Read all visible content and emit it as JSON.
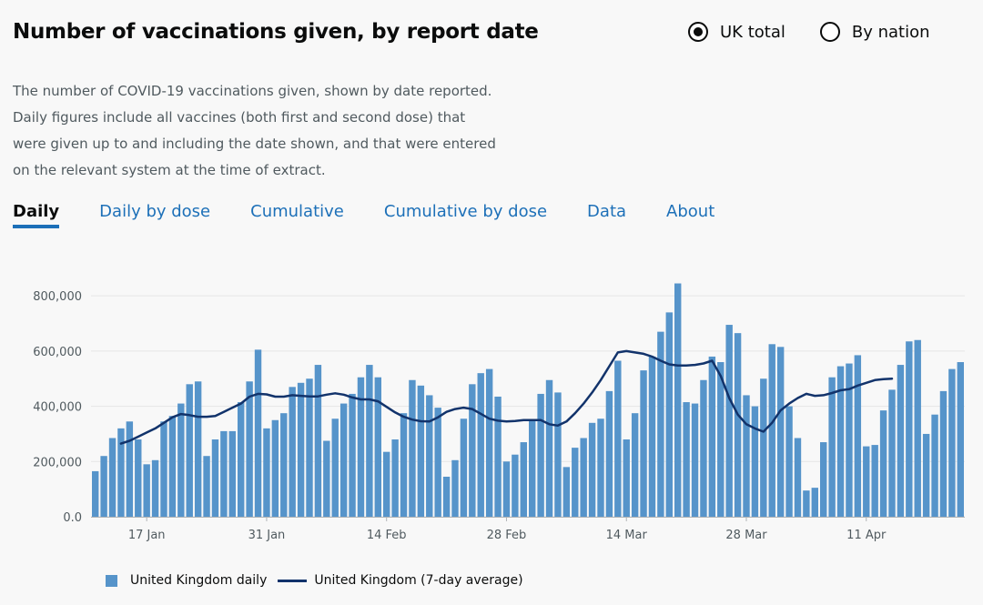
{
  "header": {
    "title": "Number of vaccinations given, by report date",
    "radios": [
      {
        "label": "UK total",
        "checked": true
      },
      {
        "label": "By nation",
        "checked": false
      }
    ]
  },
  "description": [
    "The number of COVID-19 vaccinations given, shown by date reported.",
    "Daily figures include all vaccines (both first and second dose) that",
    "were given up to and including the date shown, and that were entered",
    "on the relevant system at the time of extract."
  ],
  "tabs": [
    "Daily",
    "Daily by dose",
    "Cumulative",
    "Cumulative by dose",
    "Data",
    "About"
  ],
  "active_tab": 0,
  "colors": {
    "bar": "#5694ca",
    "line": "#12336b",
    "tab_link": "#1d70b8",
    "grid": "#e6e6e6"
  },
  "chart_data": {
    "type": "bar",
    "title": "",
    "xlabel": "",
    "ylabel": "",
    "ylim": [
      0,
      850000
    ],
    "yticks": [
      0,
      200000,
      400000,
      600000,
      800000
    ],
    "ytick_labels": [
      "0.0",
      "200,000",
      "400,000",
      "600,000",
      "800,000"
    ],
    "x_start": "11 Jan",
    "xticks": [
      {
        "index": 6,
        "label": "17 Jan"
      },
      {
        "index": 20,
        "label": "31 Jan"
      },
      {
        "index": 34,
        "label": "14 Feb"
      },
      {
        "index": 48,
        "label": "28 Feb"
      },
      {
        "index": 62,
        "label": "14 Mar"
      },
      {
        "index": 76,
        "label": "28 Mar"
      },
      {
        "index": 90,
        "label": "11 Apr"
      }
    ],
    "series": [
      {
        "name": "United Kingdom daily",
        "type": "bar",
        "values": [
          165000,
          220000,
          285000,
          320000,
          345000,
          280000,
          190000,
          205000,
          345000,
          365000,
          410000,
          480000,
          490000,
          220000,
          280000,
          310000,
          310000,
          415000,
          490000,
          605000,
          320000,
          350000,
          375000,
          470000,
          485000,
          500000,
          550000,
          275000,
          355000,
          410000,
          445000,
          505000,
          550000,
          505000,
          235000,
          280000,
          375000,
          495000,
          475000,
          440000,
          395000,
          145000,
          205000,
          355000,
          480000,
          520000,
          535000,
          435000,
          200000,
          225000,
          270000,
          350000,
          445000,
          495000,
          450000,
          180000,
          250000,
          285000,
          340000,
          355000,
          455000,
          565000,
          280000,
          375000,
          530000,
          580000,
          670000,
          740000,
          845000,
          415000,
          410000,
          495000,
          580000,
          560000,
          695000,
          665000,
          440000,
          400000,
          500000,
          625000,
          615000,
          400000,
          285000,
          95000,
          105000,
          270000,
          505000,
          545000,
          555000,
          585000,
          255000,
          260000,
          385000,
          460000,
          550000,
          635000,
          640000,
          300000,
          370000,
          455000,
          535000,
          560000
        ]
      },
      {
        "name": "United Kingdom (7-day average)",
        "type": "line",
        "start_index": 3,
        "values": [
          265000,
          275000,
          290000,
          305000,
          320000,
          340000,
          360000,
          372000,
          368000,
          362000,
          362000,
          365000,
          380000,
          395000,
          410000,
          435000,
          445000,
          443000,
          435000,
          435000,
          440000,
          438000,
          436000,
          436000,
          442000,
          447000,
          442000,
          432000,
          425000,
          425000,
          418000,
          398000,
          378000,
          362000,
          352000,
          346000,
          345000,
          360000,
          380000,
          390000,
          395000,
          390000,
          373000,
          355000,
          348000,
          345000,
          347000,
          350000,
          350000,
          350000,
          335000,
          330000,
          345000,
          375000,
          410000,
          450000,
          495000,
          545000,
          595000,
          600000,
          595000,
          590000,
          580000,
          565000,
          552000,
          548000,
          548000,
          550000,
          555000,
          565000,
          510000,
          430000,
          370000,
          335000,
          320000,
          308000,
          340000,
          385000,
          410000,
          430000,
          445000,
          438000,
          440000,
          448000,
          458000,
          462000,
          475000,
          485000,
          495000,
          498000,
          500000
        ]
      }
    ]
  },
  "legend": {
    "bar_label": "United Kingdom daily",
    "line_label": "United Kingdom (7-day average)"
  }
}
